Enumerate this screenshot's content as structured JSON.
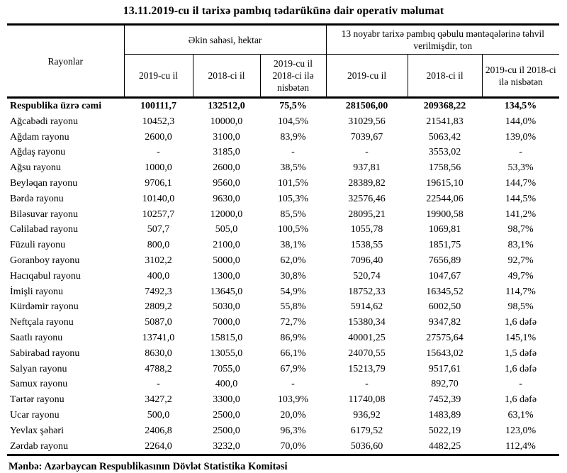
{
  "title": "13.11.2019-cu il tarixə pambıq tədarükünə dair operativ məlumat",
  "table": {
    "header": {
      "rayonlar": "Rayonlar",
      "group1": "Əkin sahəsi, hektar",
      "group2": "13 noyabr tarixə pambıq qəbulu məntəqələrinə təhvil verilmişdir, ton",
      "sub": [
        "2019-cu il",
        "2018-ci il",
        "2019-cu il 2018-ci ilə nisbətən",
        "2019-cu il",
        "2018-ci il",
        "2019-cu il 2018-ci ilə nisbətən"
      ]
    },
    "total_row": {
      "name": "Respublika üzrə cəmi",
      "values": [
        "100111,7",
        "132512,0",
        "75,5%",
        "281506,00",
        "209368,22",
        "134,5%"
      ]
    },
    "rows": [
      {
        "name": "Ağcabədi rayonu",
        "values": [
          "10452,3",
          "10000,0",
          "104,5%",
          "31029,56",
          "21541,83",
          "144,0%"
        ]
      },
      {
        "name": "Ağdam rayonu",
        "values": [
          "2600,0",
          "3100,0",
          "83,9%",
          "7039,67",
          "5063,42",
          "139,0%"
        ]
      },
      {
        "name": "Ağdaş rayonu",
        "values": [
          "-",
          "3185,0",
          "-",
          "-",
          "3553,02",
          "-"
        ]
      },
      {
        "name": "Ağsu rayonu",
        "values": [
          "1000,0",
          "2600,0",
          "38,5%",
          "937,81",
          "1758,56",
          "53,3%"
        ]
      },
      {
        "name": "Beyləqan rayonu",
        "values": [
          "9706,1",
          "9560,0",
          "101,5%",
          "28389,82",
          "19615,10",
          "144,7%"
        ]
      },
      {
        "name": "Bərdə rayonu",
        "values": [
          "10140,0",
          "9630,0",
          "105,3%",
          "32576,46",
          "22544,06",
          "144,5%"
        ]
      },
      {
        "name": "Biləsuvar rayonu",
        "values": [
          "10257,7",
          "12000,0",
          "85,5%",
          "28095,21",
          "19900,58",
          "141,2%"
        ]
      },
      {
        "name": "Cəlilabad rayonu",
        "values": [
          "507,7",
          "505,0",
          "100,5%",
          "1055,78",
          "1069,81",
          "98,7%"
        ]
      },
      {
        "name": "Füzuli rayonu",
        "values": [
          "800,0",
          "2100,0",
          "38,1%",
          "1538,55",
          "1851,75",
          "83,1%"
        ]
      },
      {
        "name": "Goranboy rayonu",
        "values": [
          "3102,2",
          "5000,0",
          "62,0%",
          "7096,40",
          "7656,89",
          "92,7%"
        ]
      },
      {
        "name": "Hacıqabul rayonu",
        "values": [
          "400,0",
          "1300,0",
          "30,8%",
          "520,74",
          "1047,67",
          "49,7%"
        ]
      },
      {
        "name": "İmişli rayonu",
        "values": [
          "7492,3",
          "13645,0",
          "54,9%",
          "18752,33",
          "16345,52",
          "114,7%"
        ]
      },
      {
        "name": "Kürdəmir rayonu",
        "values": [
          "2809,2",
          "5030,0",
          "55,8%",
          "5914,62",
          "6002,50",
          "98,5%"
        ]
      },
      {
        "name": "Neftçala rayonu",
        "values": [
          "5087,0",
          "7000,0",
          "72,7%",
          "15380,34",
          "9347,82",
          "1,6 dəfə"
        ]
      },
      {
        "name": "Saatlı rayonu",
        "values": [
          "13741,0",
          "15815,0",
          "86,9%",
          "40001,25",
          "27575,64",
          "145,1%"
        ]
      },
      {
        "name": "Sabirabad rayonu",
        "values": [
          "8630,0",
          "13055,0",
          "66,1%",
          "24070,55",
          "15643,02",
          "1,5 dəfə"
        ]
      },
      {
        "name": "Salyan rayonu",
        "values": [
          "4788,2",
          "7055,0",
          "67,9%",
          "15213,79",
          "9517,61",
          "1,6 dəfə"
        ]
      },
      {
        "name": "Samux rayonu",
        "values": [
          "-",
          "400,0",
          "-",
          "-",
          "892,70",
          "-"
        ]
      },
      {
        "name": "Tərtər rayonu",
        "values": [
          "3427,2",
          "3300,0",
          "103,9%",
          "11740,08",
          "7452,39",
          "1,6 dəfə"
        ]
      },
      {
        "name": "Ucar rayonu",
        "values": [
          "500,0",
          "2500,0",
          "20,0%",
          "936,92",
          "1483,89",
          "63,1%"
        ]
      },
      {
        "name": "Yevlax şəhəri",
        "values": [
          "2406,8",
          "2500,0",
          "96,3%",
          "6179,52",
          "5022,19",
          "123,0%"
        ]
      },
      {
        "name": "Zərdab rayonu",
        "values": [
          "2264,0",
          "3232,0",
          "70,0%",
          "5036,60",
          "4482,25",
          "112,4%"
        ]
      }
    ]
  },
  "footer": "Mənbə: Azərbaycan Respublikasının Dövlət Statistika Komitəsi"
}
